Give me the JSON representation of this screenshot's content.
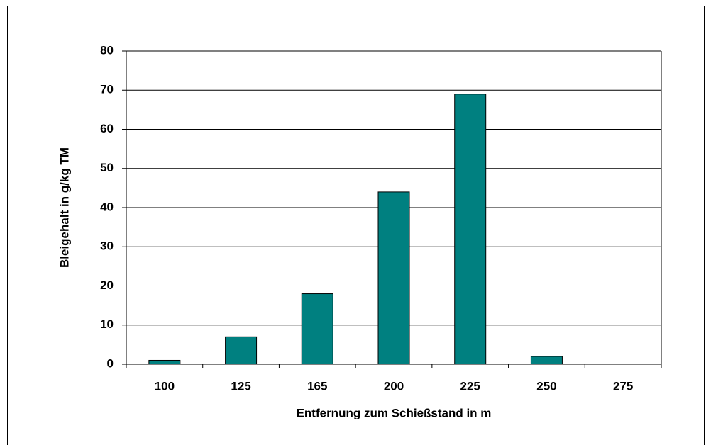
{
  "chart_data": {
    "type": "bar",
    "xlabel": "Entfernung zum Schießstand in m",
    "ylabel": "Bleigehalt in g/kg TM",
    "categories": [
      "100",
      "125",
      "165",
      "200",
      "225",
      "250",
      "275"
    ],
    "values": [
      1,
      7,
      18,
      44,
      69,
      2,
      0
    ],
    "color": "#008080",
    "ylim": [
      0,
      80
    ],
    "yticks": [
      0,
      10,
      20,
      30,
      40,
      50,
      60,
      70,
      80
    ],
    "grid": true
  }
}
